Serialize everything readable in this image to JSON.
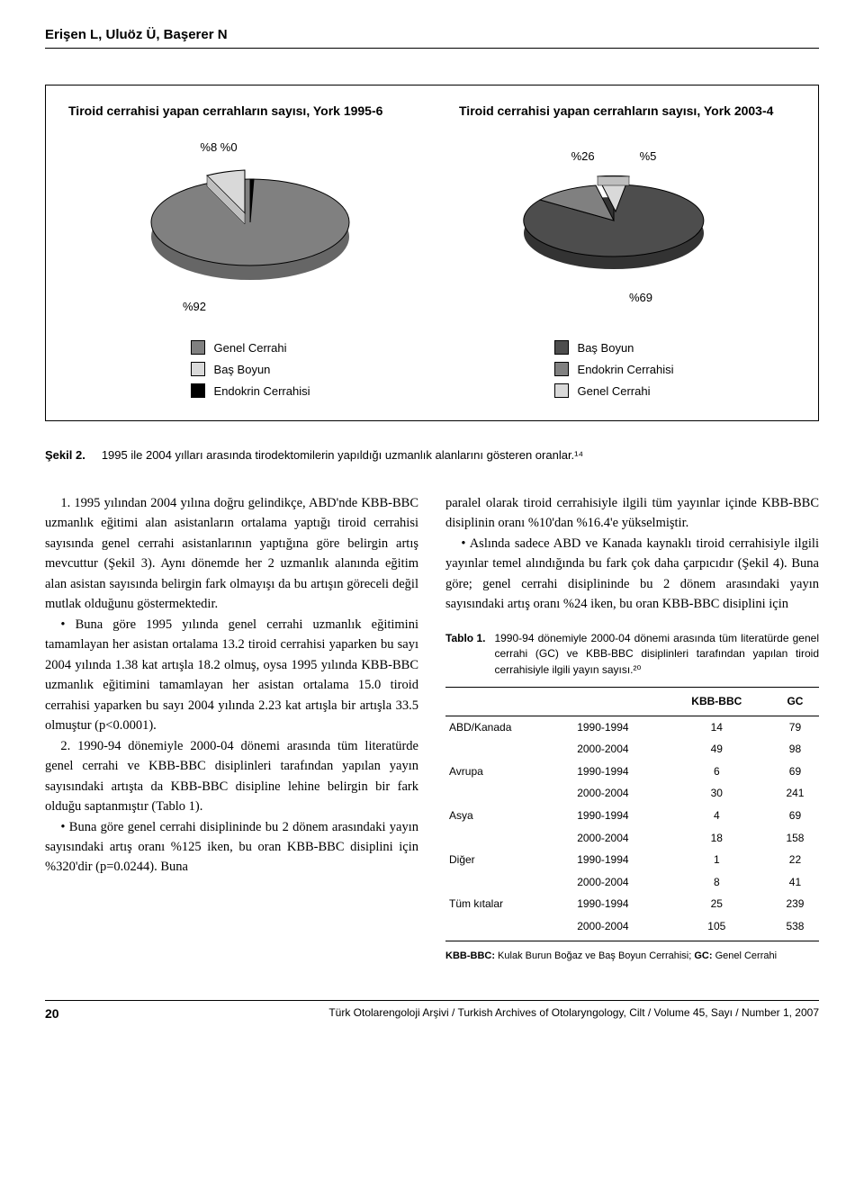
{
  "authors": "Erişen L, Uluöz Ü, Başerer N",
  "figure": {
    "title_left": "Tiroid cerrahisi yapan cerrahların sayısı, York 1995-6",
    "title_right": "Tiroid cerrahisi yapan cerrahların sayısı, York 2003-4",
    "chart_left": {
      "type": "pie",
      "slices": [
        {
          "label": "%92",
          "value": 92,
          "color": "#808080"
        },
        {
          "label": "%8",
          "value": 8,
          "color": "#d9d9d9"
        },
        {
          "label": "%0",
          "value": 0,
          "color": "#000000"
        }
      ],
      "below_label": "%92",
      "top_labels": "%8   %0"
    },
    "chart_right": {
      "type": "pie",
      "slices": [
        {
          "label": "%69",
          "value": 69,
          "color": "#4d4d4d"
        },
        {
          "label": "%26",
          "value": 26,
          "color": "#808080"
        },
        {
          "label": "%5",
          "value": 5,
          "color": "#d9d9d9"
        }
      ],
      "below_label": "%69",
      "top_labels_left": "%26",
      "top_labels_right": "%5"
    },
    "legend_left": [
      {
        "color": "#808080",
        "label": "Genel Cerrahi"
      },
      {
        "color": "#d9d9d9",
        "label": "Baş Boyun"
      },
      {
        "color": "#000000",
        "label": "Endokrin Cerrahisi"
      }
    ],
    "legend_right": [
      {
        "color": "#4d4d4d",
        "label": "Baş Boyun"
      },
      {
        "color": "#808080",
        "label": "Endokrin Cerrahisi"
      },
      {
        "color": "#d9d9d9",
        "label": "Genel Cerrahi"
      }
    ]
  },
  "figure_caption": {
    "label": "Şekil 2.",
    "text": "1995 ile 2004 yılları arasında tirodektomilerin yapıldığı uzmanlık alanlarını gösteren oranlar.¹⁴"
  },
  "body_left": {
    "p1": "1. 1995 yılından 2004 yılına doğru gelindikçe, ABD'nde KBB-BBC uzmanlık eğitimi alan asistanların ortalama yaptığı tiroid cerrahisi sayısında genel cerrahi asistanlarının yaptığına göre belirgin artış mevcuttur (Şekil 3). Aynı dönemde her 2 uzmanlık alanında eğitim alan asistan sayısında belirgin fark olmayışı da bu artışın göreceli değil mutlak olduğunu göstermektedir.",
    "p2": "• Buna göre 1995 yılında genel cerrahi uzmanlık eğitimini tamamlayan her asistan ortalama 13.2 tiroid cerrahisi yaparken bu sayı 2004 yılında 1.38 kat artışla 18.2 olmuş, oysa 1995 yılında KBB-BBC uzmanlık eğitimini tamamlayan her asistan ortalama 15.0 tiroid cerrahisi yaparken bu sayı 2004 yılında 2.23 kat artışla bir artışla 33.5 olmuştur (p<0.0001).",
    "p3": "2. 1990-94 dönemiyle 2000-04 dönemi arasında tüm literatürde genel cerrahi ve KBB-BBC disiplinleri tarafından yapılan yayın sayısındaki artışta da KBB-BBC disipline lehine belirgin bir fark olduğu saptanmıştır (Tablo 1).",
    "p4": "• Buna göre genel cerrahi disiplininde bu 2 dönem arasındaki yayın sayısındaki artış oranı %125 iken, bu oran KBB-BBC disiplini için %320'dir (p=0.0244). Buna"
  },
  "body_right": {
    "p1": "paralel olarak tiroid cerrahisiyle ilgili tüm yayınlar içinde KBB-BBC disiplinin oranı %10'dan %16.4'e yükselmiştir.",
    "p2": "• Aslında sadece ABD ve Kanada kaynaklı tiroid cerrahisiyle ilgili yayınlar temel alındığında bu fark çok daha çarpıcıdır (Şekil 4). Buna göre; genel cerrahi disiplininde bu 2 dönem arasındaki yayın sayısındaki artış oranı %24 iken, bu oran KBB-BBC disiplini için"
  },
  "table": {
    "label": "Tablo 1.",
    "caption": "1990-94 dönemiyle 2000-04 dönemi arasında tüm literatürde genel cerrahi (GC) ve KBB-BBC disiplinleri tarafından yapılan tiroid cerrahisiyle ilgili yayın sayısı.²⁰",
    "headers": {
      "c1": "",
      "c2": "",
      "c3": "KBB-BBC",
      "c4": "GC"
    },
    "rows": [
      {
        "region": "ABD/Kanada",
        "period": "1990-1994",
        "kbb": "14",
        "gc": "79"
      },
      {
        "region": "",
        "period": "2000-2004",
        "kbb": "49",
        "gc": "98"
      },
      {
        "region": "Avrupa",
        "period": "1990-1994",
        "kbb": "6",
        "gc": "69"
      },
      {
        "region": "",
        "period": "2000-2004",
        "kbb": "30",
        "gc": "241"
      },
      {
        "region": "Asya",
        "period": "1990-1994",
        "kbb": "4",
        "gc": "69"
      },
      {
        "region": "",
        "period": "2000-2004",
        "kbb": "18",
        "gc": "158"
      },
      {
        "region": "Diğer",
        "period": "1990-1994",
        "kbb": "1",
        "gc": "22"
      },
      {
        "region": "",
        "period": "2000-2004",
        "kbb": "8",
        "gc": "41"
      },
      {
        "region": "Tüm kıtalar",
        "period": "1990-1994",
        "kbb": "25",
        "gc": "239"
      },
      {
        "region": "",
        "period": "2000-2004",
        "kbb": "105",
        "gc": "538"
      }
    ],
    "note_bold1": "KBB-BBC:",
    "note_text1": " Kulak Burun Boğaz ve Baş Boyun Cerrahisi; ",
    "note_bold2": "GC:",
    "note_text2": " Genel Cerrahi"
  },
  "footer": {
    "page": "20",
    "journal": "Türk Otolarengoloji Arşivi / Turkish Archives of Otolaryngology, Cilt / Volume 45, Sayı / Number 1, 2007"
  },
  "colors": {
    "dark_gray": "#4d4d4d",
    "mid_gray": "#808080",
    "light_gray": "#d9d9d9",
    "black": "#000000"
  }
}
